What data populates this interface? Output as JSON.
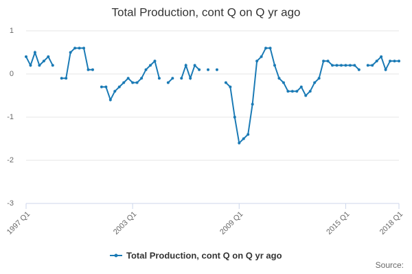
{
  "chart_data": {
    "type": "line",
    "title": "Total Production, cont Q on Q yr ago",
    "categories": [
      "1997 Q1",
      null,
      null,
      null,
      null,
      null,
      null,
      null,
      null,
      null,
      null,
      null,
      null,
      null,
      null,
      null,
      null,
      null,
      null,
      null,
      null,
      null,
      null,
      null,
      "2003 Q1",
      null,
      null,
      null,
      null,
      null,
      null,
      null,
      null,
      null,
      null,
      null,
      null,
      null,
      null,
      null,
      null,
      null,
      null,
      null,
      null,
      null,
      null,
      null,
      "2009 Q1",
      null,
      null,
      null,
      null,
      null,
      null,
      null,
      null,
      null,
      null,
      null,
      null,
      null,
      null,
      null,
      null,
      null,
      null,
      null,
      null,
      null,
      null,
      null,
      "2015 Q1",
      null,
      null,
      null,
      null,
      null,
      null,
      null,
      null,
      null,
      null,
      null,
      "2018 Q1"
    ],
    "series": [
      {
        "name": "Total Production, cont Q on Q yr ago",
        "color": "#1a7ab5",
        "values": [
          0.4,
          0.2,
          0.5,
          0.2,
          0.3,
          0.4,
          0.2,
          null,
          -0.1,
          -0.1,
          0.5,
          0.6,
          0.6,
          0.6,
          0.1,
          0.1,
          null,
          -0.3,
          -0.3,
          -0.6,
          -0.4,
          -0.3,
          -0.2,
          -0.1,
          -0.2,
          -0.2,
          -0.1,
          0.1,
          0.2,
          0.3,
          -0.1,
          null,
          -0.2,
          -0.1,
          null,
          -0.1,
          0.2,
          -0.1,
          0.2,
          0.1,
          null,
          0.1,
          null,
          0.1,
          null,
          -0.2,
          -0.3,
          -1.0,
          -1.6,
          -1.5,
          -1.4,
          -0.7,
          0.3,
          0.4,
          0.6,
          0.6,
          0.2,
          -0.1,
          -0.2,
          -0.4,
          -0.4,
          -0.4,
          -0.3,
          -0.5,
          -0.4,
          -0.2,
          -0.1,
          0.3,
          0.3,
          0.2,
          0.2,
          0.2,
          0.2,
          0.2,
          0.2,
          0.1,
          null,
          0.2,
          0.2,
          0.3,
          0.4,
          0.1,
          0.3,
          0.3,
          0.3
        ]
      }
    ],
    "ylim": [
      -3,
      1
    ],
    "yticks": [
      1,
      0,
      -1,
      -2,
      -3
    ],
    "grid": true,
    "source": "Source:"
  }
}
